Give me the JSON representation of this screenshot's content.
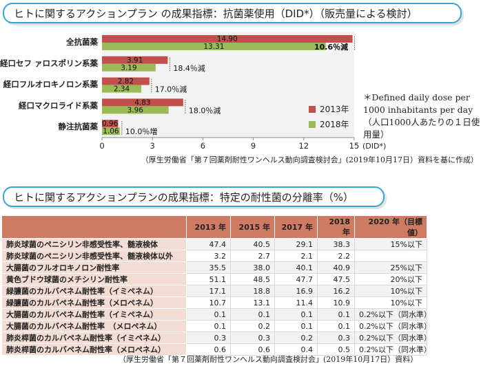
{
  "section1_title": "ヒトに関するアクションプラン の成果指標：抗菌薬使用（DID*）（販売量による検討）",
  "chart_data": {
    "type": "bar",
    "orientation": "horizontal",
    "categories": [
      "全抗菌薬",
      "経口セフ ァロスポリン系薬",
      "経口フルオロキノロン系薬",
      "経口マクロライド系薬",
      "静注抗菌薬"
    ],
    "series": [
      {
        "name": "2013年",
        "color": "#c0504d",
        "values": [
          14.9,
          3.91,
          2.82,
          4.83,
          0.96
        ],
        "labels": [
          "14.90",
          "3.91",
          "2.82",
          "4.83",
          "0.96"
        ]
      },
      {
        "name": "2018年",
        "color": "#9bbb59",
        "values": [
          13.31,
          3.19,
          2.34,
          3.96,
          1.06
        ],
        "labels": [
          "13.31",
          "3.19",
          "2.34",
          "3.96",
          "1.06"
        ]
      }
    ],
    "annotations": [
      "10.6％減",
      "18.4％減",
      "17.0％減",
      "18.0％減",
      "10.0％増"
    ],
    "xlim": [
      0,
      15
    ],
    "xticks": [
      "0",
      "3",
      "6",
      "9",
      "12",
      "15"
    ],
    "xlabel": "(DID*)",
    "grid": false,
    "legend": "right"
  },
  "note": "＊Defined daily dose per 1000 inhabitants per day（人口1000人あたりの１日使用量）",
  "source1": "（厚生労働省「第７回薬剤耐性ワンヘルス動向調査検討会」(2019年10月17日）資料を基に作成）",
  "section2_title": "ヒトに関するアクションプランの成果指標：特定の耐性菌の分離率（%）",
  "table": {
    "headers": [
      "",
      "2013 年",
      "2015 年",
      "2017 年",
      "2018 年",
      "2020 年（目標値）"
    ],
    "rows": [
      [
        "肺炎球菌のペニシリン非感受性率、髄液検体",
        "47.4",
        "40.5",
        "29.1",
        "38.3",
        "15%以下"
      ],
      [
        "肺炎球菌のペニシリン非感受性率、髄液検体以外",
        "3.2",
        "2.7",
        "2.1",
        "2.2",
        ""
      ],
      [
        "大腸菌のフルオロキノロン耐性率",
        "35.5",
        "38.0",
        "40.1",
        "40.9",
        "25%以下"
      ],
      [
        "黄色ブドウ球菌のメチシリン耐性率",
        "51.1",
        "48.5",
        "47.7",
        "47.5",
        "20%以下"
      ],
      [
        "緑膿菌のカルバペネム耐性率（イミペネム）",
        "17.1",
        "18.8",
        "16.9",
        "16.2",
        "10%以下"
      ],
      [
        "緑膿菌のカルバペネム耐性率（メロペネム）",
        "10.7",
        "13.1",
        "11.4",
        "10.9",
        "10%以下"
      ],
      [
        "大腸菌のカルバペネム耐性率（イミペネム）",
        "0.1",
        "0.1",
        "0.1",
        "0.1",
        "0.2%以下（同水準）"
      ],
      [
        "大腸菌のカルバペネム耐性率　（メロペネム）",
        "0.1",
        "0.2",
        "0.1",
        "0.1",
        "0.2%以下（同水準）"
      ],
      [
        "肺炎桿菌のカルバペネム耐性率（イミペネム）",
        "0.3",
        "0.3",
        "0.2",
        "0.3",
        "0.2%以下（同水準）"
      ],
      [
        "肺炎桿菌のカルバペネム耐性率（メロペネム）",
        "0.6",
        "0.6",
        "0.4",
        "0.5",
        "0.2%以下（同水準）"
      ]
    ]
  },
  "source2": "（厚生労働省「第７回薬剤耐性ワンヘルス動向調査検討会」(2019年10月17日）資料）"
}
